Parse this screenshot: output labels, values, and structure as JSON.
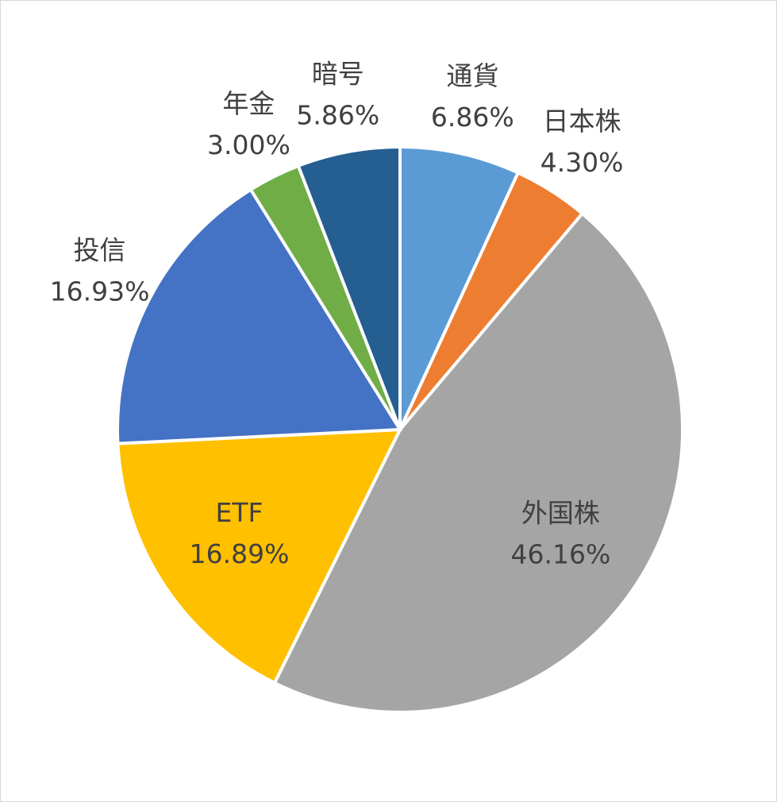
{
  "chart_data": {
    "type": "pie",
    "categories": [
      "通貨",
      "日本株",
      "外国株",
      "ETF",
      "投信",
      "年金",
      "暗号"
    ],
    "values": [
      6.86,
      4.3,
      46.16,
      16.89,
      16.93,
      3.0,
      5.86
    ],
    "value_labels": [
      "6.86%",
      "4.30%",
      "46.16%",
      "16.89%",
      "16.93%",
      "3.00%",
      "5.86%"
    ],
    "colors": [
      "#5b9bd5",
      "#ed7d31",
      "#a5a5a5",
      "#ffc000",
      "#4472c4",
      "#70ad47",
      "#255e91"
    ]
  }
}
